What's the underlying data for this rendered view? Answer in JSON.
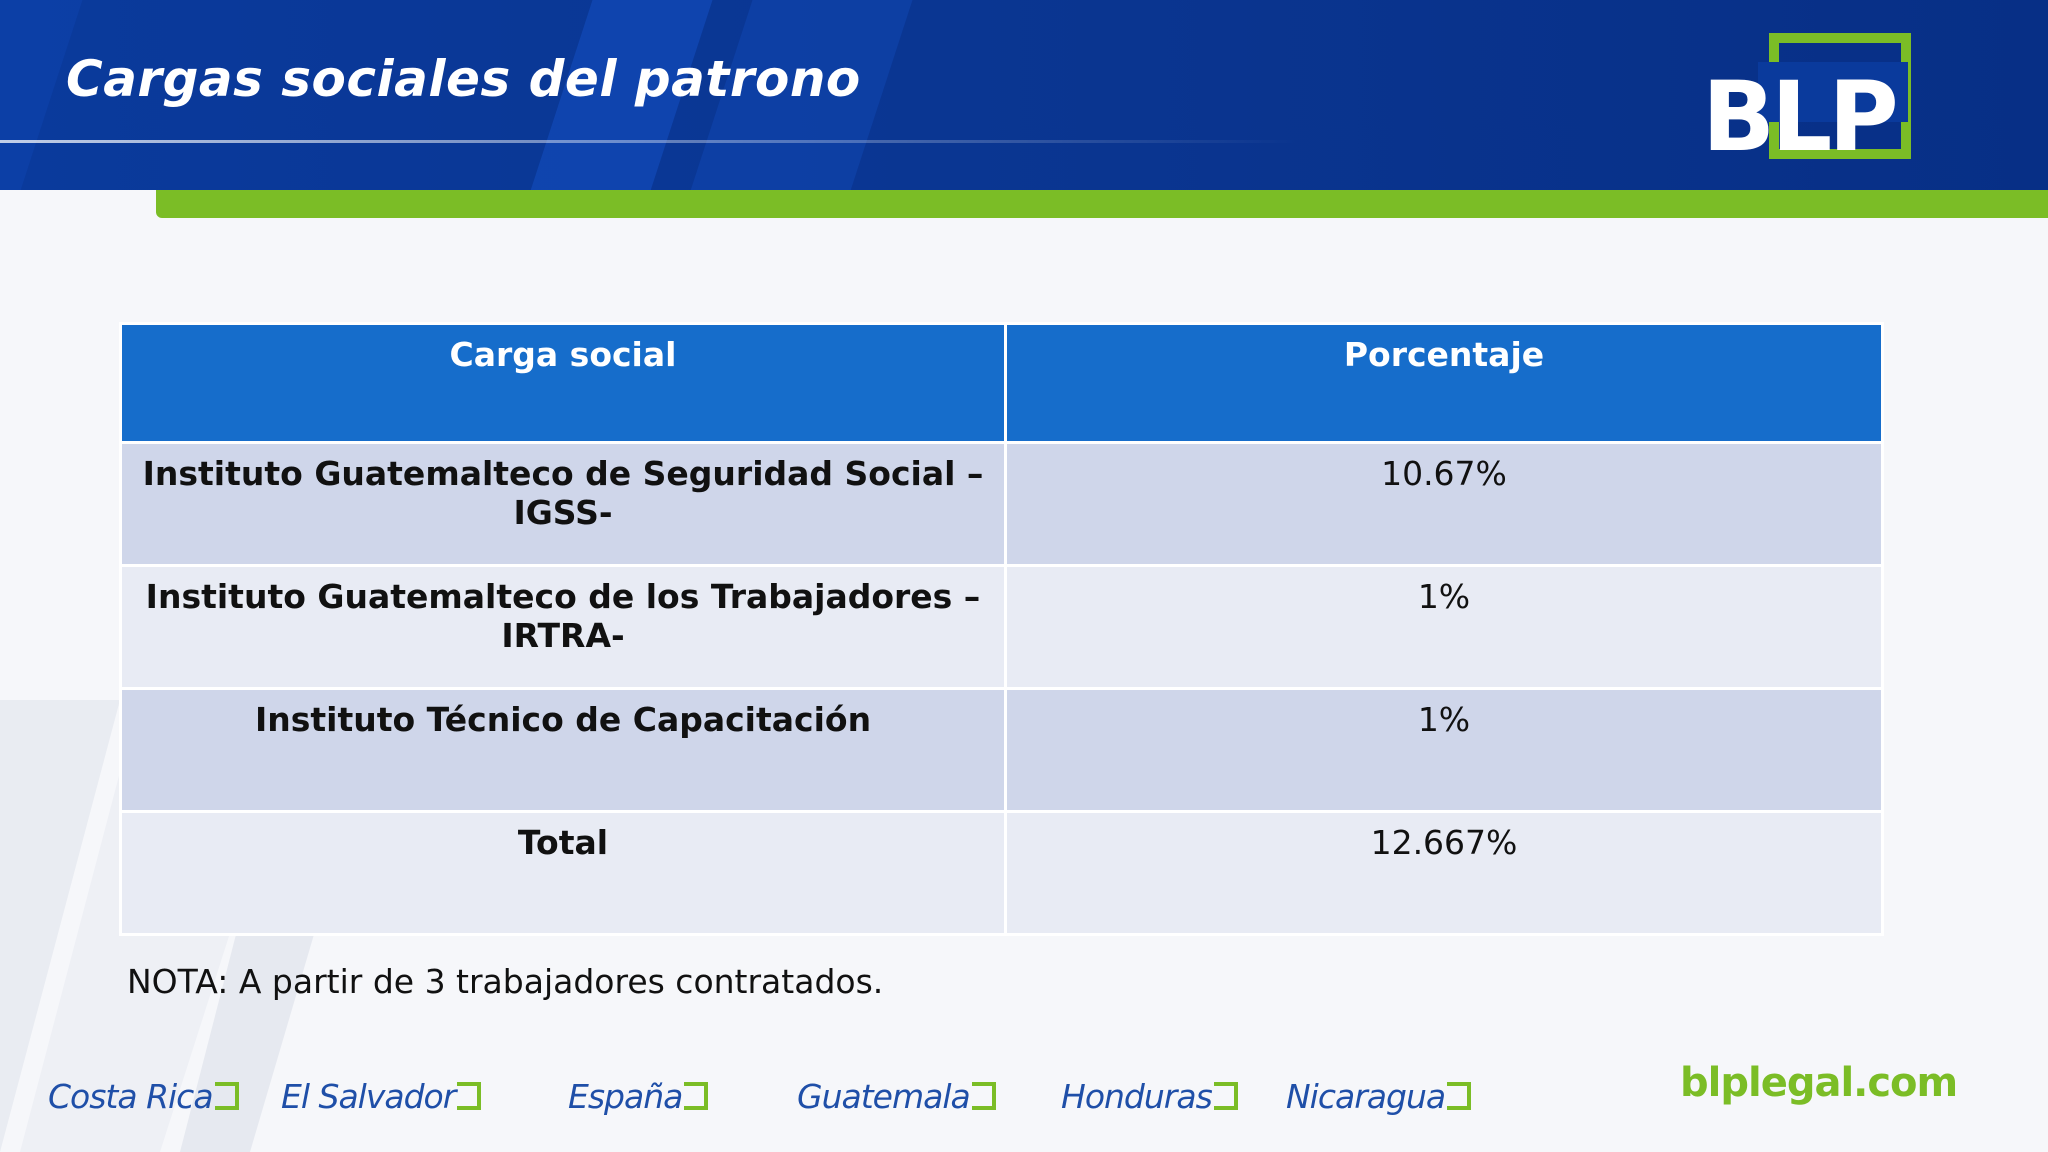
{
  "title": "Cargas sociales  del patrono",
  "logo_text": "BLP",
  "colors": {
    "header_blue": "#0a3a9c",
    "accent_green": "#7bbd26",
    "table_header": "#166dcb",
    "row_dark": "#cfd6ea",
    "row_light": "#e8ebf4",
    "footer_blue": "#1f4fa8"
  },
  "table": {
    "headers": [
      "Carga social",
      "Porcentaje"
    ],
    "rows": [
      {
        "label": "Instituto Guatemalteco de Seguridad Social –IGSS-",
        "value": "10.67%"
      },
      {
        "label": "Instituto Guatemalteco de los Trabajadores – IRTRA-",
        "value": "1%"
      },
      {
        "label": "Instituto Técnico de Capacitación",
        "value": "1%"
      },
      {
        "label": "Total",
        "value": "12.667%"
      }
    ]
  },
  "note": "NOTA: A partir de 3 trabajadores contratados.",
  "footer": {
    "countries": [
      "Costa Rica",
      "El Salvador",
      "España",
      "Guatemala",
      "Honduras",
      "Nicaragua"
    ],
    "website": "blplegal.com"
  }
}
